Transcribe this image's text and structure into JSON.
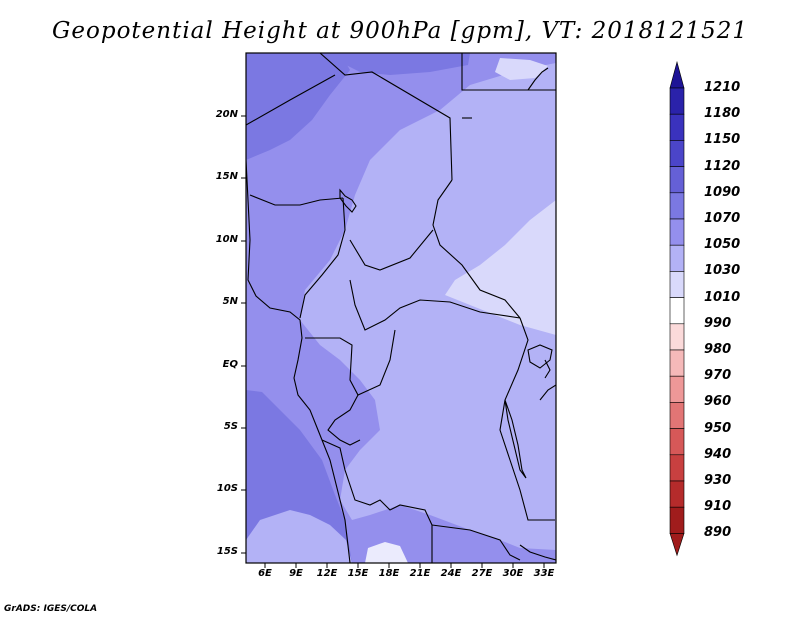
{
  "title": "Geopotential Height at 900hPa [gpm], VT: 2018121521",
  "credit": "GrADS: IGES/COLA",
  "lat_labels": [
    "20N",
    "15N",
    "10N",
    "5N",
    "EQ",
    "5S",
    "10S",
    "15S"
  ],
  "lon_labels": [
    "6E",
    "9E",
    "12E",
    "15E",
    "18E",
    "21E",
    "24E",
    "27E",
    "30E",
    "33E"
  ],
  "colorbar": {
    "labels": [
      "1210",
      "1180",
      "1150",
      "1120",
      "1090",
      "1070",
      "1050",
      "1030",
      "1010",
      "990",
      "980",
      "970",
      "960",
      "950",
      "940",
      "930",
      "910",
      "890"
    ],
    "colors": [
      "#1e1496",
      "#2a22aa",
      "#3a32bd",
      "#4b45c9",
      "#6560d6",
      "#7b78e2",
      "#948fed",
      "#b3b2f6",
      "#d9d9fb",
      "#ffffff",
      "#fbdada",
      "#f5b9b9",
      "#ee9898",
      "#e27575",
      "#d65858",
      "#c84040",
      "#b52b2b",
      "#a01c1c"
    ]
  },
  "map": {
    "lat_range": [
      -16,
      25
    ],
    "lon_range": [
      4,
      34
    ],
    "field_colors": {
      "c1050_1070": "#7b78e2",
      "c1030_1050": "#948fed",
      "c1010_1030": "#b3b2f6",
      "c990_1010": "#d9d9fb",
      "c_min": "#ebebfd"
    }
  }
}
